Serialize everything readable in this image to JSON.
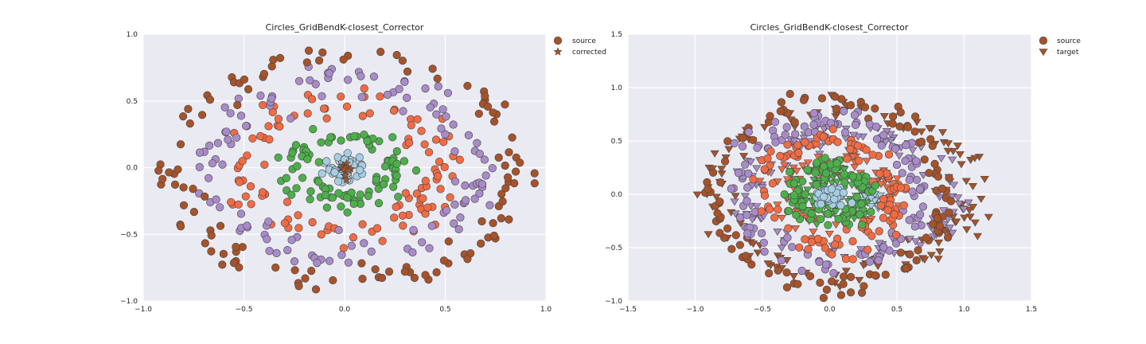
{
  "colors": {
    "background": "#EAEAF2",
    "grid": "#ffffff",
    "ring_center": "#A6CEE3",
    "ring_1": "#4DAF4A",
    "ring_2": "#F26B43",
    "ring_3": "#A88BC8",
    "ring_4": "#A6532A",
    "edge": "#444444"
  },
  "chart_data": [
    {
      "type": "scatter",
      "title": "Circles_GridBendK-closest_Corrector",
      "xlim": [
        -1.0,
        1.0
      ],
      "ylim": [
        -1.0,
        1.0
      ],
      "xticks": [
        "−1.0",
        "−0.5",
        "0.0",
        "0.5",
        "1.0"
      ],
      "xtick_values": [
        -1.0,
        -0.5,
        0.0,
        0.5,
        1.0
      ],
      "yticks": [
        "−1.0",
        "−0.5",
        "0.0",
        "0.5",
        "1.0"
      ],
      "ytick_values": [
        -1.0,
        -0.5,
        0.0,
        0.5,
        1.0
      ],
      "grid": true,
      "legend_position": "outside-top-right",
      "legend": [
        {
          "label": "source",
          "marker": "circle"
        },
        {
          "label": "corrected",
          "marker": "star"
        }
      ],
      "series": [
        {
          "marker": "circle",
          "color": "#A6CEE3",
          "distribution": "ring",
          "center": [
            0,
            0
          ],
          "radius": 0.0,
          "spread_x": 0.06,
          "spread_y": 0.06,
          "count": 40
        },
        {
          "marker": "circle",
          "color": "#4DAF4A",
          "distribution": "ring",
          "center": [
            0,
            0
          ],
          "radius": 0.25,
          "spread_x": 0.05,
          "spread_y": 0.05,
          "count": 90
        },
        {
          "marker": "circle",
          "color": "#F26B43",
          "distribution": "ring",
          "center": [
            0,
            0
          ],
          "radius": 0.48,
          "spread_x": 0.06,
          "spread_y": 0.06,
          "count": 110
        },
        {
          "marker": "circle",
          "color": "#A88BC8",
          "distribution": "ring",
          "center": [
            0,
            0
          ],
          "radius": 0.66,
          "spread_x": 0.06,
          "spread_y": 0.06,
          "count": 120
        },
        {
          "marker": "circle",
          "color": "#A6532A",
          "distribution": "ring",
          "center": [
            0,
            0
          ],
          "radius": 0.85,
          "spread_x": 0.05,
          "spread_y": 0.05,
          "count": 120
        },
        {
          "marker": "star",
          "color": "#A6532A",
          "distribution": "cluster",
          "center": [
            0,
            0
          ],
          "spread_x": 0.012,
          "spread_y": 0.05,
          "count": 12
        }
      ]
    },
    {
      "type": "scatter",
      "title": "Circles_GridBendK-closest_Corrector",
      "xlim": [
        -1.5,
        1.5
      ],
      "ylim": [
        -1.0,
        1.5
      ],
      "xticks": [
        "−1.5",
        "−1.0",
        "−0.5",
        "0.0",
        "0.5",
        "1.0",
        "1.5"
      ],
      "xtick_values": [
        -1.5,
        -1.0,
        -0.5,
        0.0,
        0.5,
        1.0,
        1.5
      ],
      "yticks": [
        "−1.0",
        "−0.5",
        "0.0",
        "0.5",
        "1.0",
        "1.5"
      ],
      "ytick_values": [
        -1.0,
        -0.5,
        0.0,
        0.5,
        1.0,
        1.5
      ],
      "grid": true,
      "legend_position": "outside-top-right",
      "legend": [
        {
          "label": "source",
          "marker": "circle"
        },
        {
          "label": "target",
          "marker": "triangle"
        }
      ],
      "series": [
        {
          "marker": "triangle",
          "color": "#A6532A",
          "distribution": "ellipse",
          "center": [
            0.1,
            0.05
          ],
          "radius_x": 0.95,
          "radius_y": 0.75,
          "spread_x": 0.08,
          "spread_y": 0.06,
          "count": 120
        },
        {
          "marker": "triangle",
          "color": "#A88BC8",
          "distribution": "ellipse",
          "center": [
            0.15,
            0.0
          ],
          "radius_x": 0.75,
          "radius_y": 0.55,
          "spread_x": 0.08,
          "spread_y": 0.06,
          "count": 110
        },
        {
          "marker": "triangle",
          "color": "#F26B43",
          "distribution": "ellipse",
          "center": [
            0.05,
            0.0
          ],
          "radius_x": 0.4,
          "radius_y": 0.32,
          "spread_x": 0.08,
          "spread_y": 0.06,
          "count": 90
        },
        {
          "marker": "triangle",
          "color": "#4DAF4A",
          "distribution": "ellipse",
          "center": [
            0.05,
            0.0
          ],
          "radius_x": 0.18,
          "radius_y": 0.15,
          "spread_x": 0.06,
          "spread_y": 0.05,
          "count": 70
        },
        {
          "marker": "triangle",
          "color": "#A6CEE3",
          "distribution": "ellipse",
          "center": [
            0.3,
            0.0
          ],
          "radius_x": 0.06,
          "radius_y": 0.05,
          "spread_x": 0.04,
          "spread_y": 0.04,
          "count": 30
        },
        {
          "marker": "circle",
          "color": "#A6532A",
          "distribution": "ring",
          "center": [
            0,
            0
          ],
          "radius": 0.85,
          "spread_x": 0.05,
          "spread_y": 0.05,
          "count": 120
        },
        {
          "marker": "circle",
          "color": "#A88BC8",
          "distribution": "ring",
          "center": [
            0,
            0
          ],
          "radius": 0.66,
          "spread_x": 0.06,
          "spread_y": 0.06,
          "count": 120
        },
        {
          "marker": "circle",
          "color": "#F26B43",
          "distribution": "ring",
          "center": [
            0,
            0
          ],
          "radius": 0.48,
          "spread_x": 0.06,
          "spread_y": 0.06,
          "count": 110
        },
        {
          "marker": "circle",
          "color": "#4DAF4A",
          "distribution": "ring",
          "center": [
            0,
            0
          ],
          "radius": 0.25,
          "spread_x": 0.05,
          "spread_y": 0.05,
          "count": 90
        },
        {
          "marker": "circle",
          "color": "#A6CEE3",
          "distribution": "ring",
          "center": [
            0,
            0
          ],
          "radius": 0.0,
          "spread_x": 0.06,
          "spread_y": 0.06,
          "count": 40
        }
      ]
    }
  ]
}
